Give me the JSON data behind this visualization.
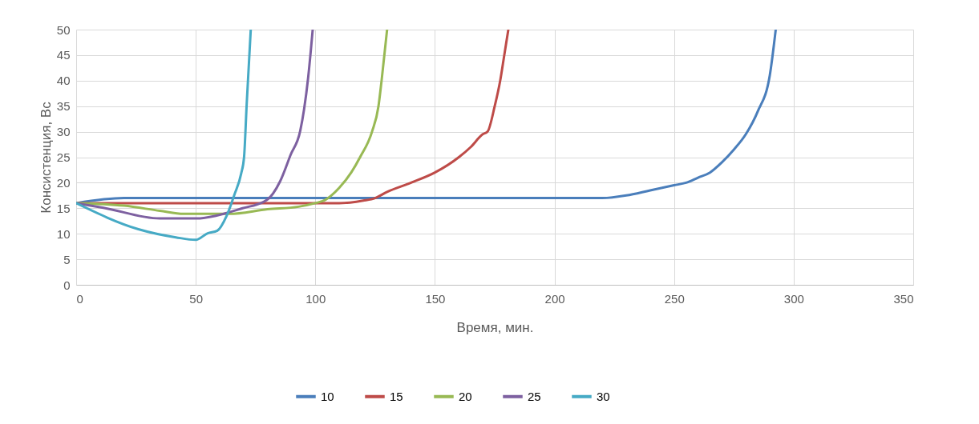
{
  "chart_data": {
    "type": "line",
    "xlabel": "Время, мин.",
    "ylabel": "Консистенция, Вс",
    "xlim": [
      0,
      350
    ],
    "xticks": [
      0,
      50,
      100,
      150,
      200,
      250,
      300,
      350
    ],
    "ylim": [
      0,
      50
    ],
    "yticks": [
      0,
      5,
      10,
      15,
      20,
      25,
      30,
      35,
      40,
      45,
      50
    ],
    "grid": true,
    "legend": "bottom",
    "marker": "none",
    "line_style": "solid",
    "series": [
      {
        "name": "10",
        "color": "#4a7ebb",
        "x": [
          0,
          20,
          220,
          230,
          240,
          250,
          255,
          260,
          265,
          270,
          275,
          280,
          285,
          290,
          292.5
        ],
        "values": [
          16,
          17,
          17,
          17.5,
          18.5,
          19.5,
          20,
          21,
          22,
          24,
          26.5,
          29.5,
          34,
          41,
          50
        ]
      },
      {
        "name": "15",
        "color": "#be4b48",
        "x": [
          0,
          110,
          120,
          125,
          130,
          140,
          150,
          160,
          165,
          170,
          172,
          175,
          177.3,
          179,
          180.7
        ],
        "values": [
          16,
          16,
          16.5,
          17,
          18.2,
          20,
          22,
          25,
          27,
          29.5,
          30,
          35,
          40,
          45,
          50
        ]
      },
      {
        "name": "20",
        "color": "#98b954",
        "x": [
          0,
          20,
          35,
          45,
          64,
          80,
          93,
          100,
          104,
          110,
          115,
          118.7,
          123.7,
          126.4,
          127.7,
          130
        ],
        "values": [
          16,
          15.5,
          14.5,
          13.9,
          13.9,
          14.8,
          15.3,
          16,
          16.6,
          19,
          22,
          25,
          30,
          35,
          40,
          50
        ]
      },
      {
        "name": "25",
        "color": "#7d60a0",
        "x": [
          0,
          11.4,
          35,
          49.8,
          69.6,
          79.7,
          85.3,
          89.7,
          93.7,
          95.3,
          97,
          98.9
        ],
        "values": [
          16,
          15.1,
          13,
          13,
          15,
          16.6,
          20.3,
          25.5,
          30.2,
          34.4,
          40.6,
          50
        ]
      },
      {
        "name": "30",
        "color": "#46aac5",
        "x": [
          0,
          26,
          41.7,
          50,
          55,
          59,
          62.9,
          66.2,
          69,
          70.2,
          71.3,
          73
        ],
        "values": [
          16,
          10.9,
          9.3,
          8.8,
          10.1,
          10.6,
          13.5,
          17.7,
          21.8,
          25,
          35.4,
          50
        ]
      }
    ]
  }
}
